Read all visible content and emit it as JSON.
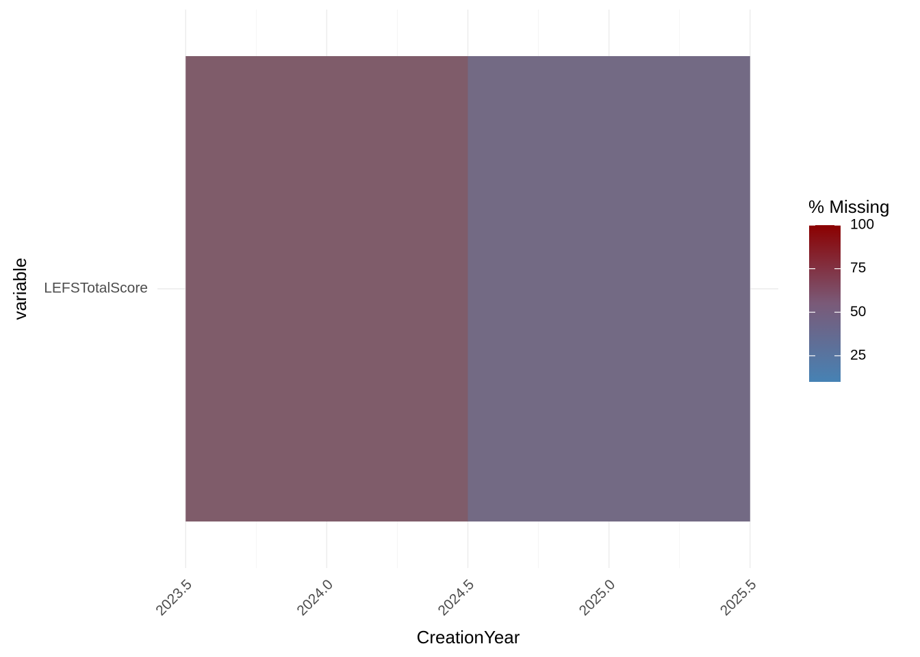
{
  "chart_data": {
    "type": "heatmap",
    "xlabel": "CreationYear",
    "ylabel": "variable",
    "x_ticks": [
      "2023.5",
      "2024.0",
      "2024.5",
      "2025.0",
      "2025.5"
    ],
    "y_categories": [
      "LEFSTotalScore"
    ],
    "cells": [
      {
        "variable": "LEFSTotalScore",
        "x_start": 2023.5,
        "x_end": 2024.5,
        "pct_missing": 55,
        "color": "#7f5c6a"
      },
      {
        "variable": "LEFSTotalScore",
        "x_start": 2024.5,
        "x_end": 2025.5,
        "pct_missing": 40,
        "color": "#736a84"
      }
    ],
    "xlim": [
      2023.4,
      2025.6
    ],
    "grid": true,
    "legend": {
      "title": "% Missing",
      "position": "right",
      "ticks": [
        "25",
        "50",
        "75",
        "100"
      ],
      "range": [
        10,
        100
      ],
      "color_low": "#4682b4",
      "color_high": "#8b0000"
    }
  }
}
